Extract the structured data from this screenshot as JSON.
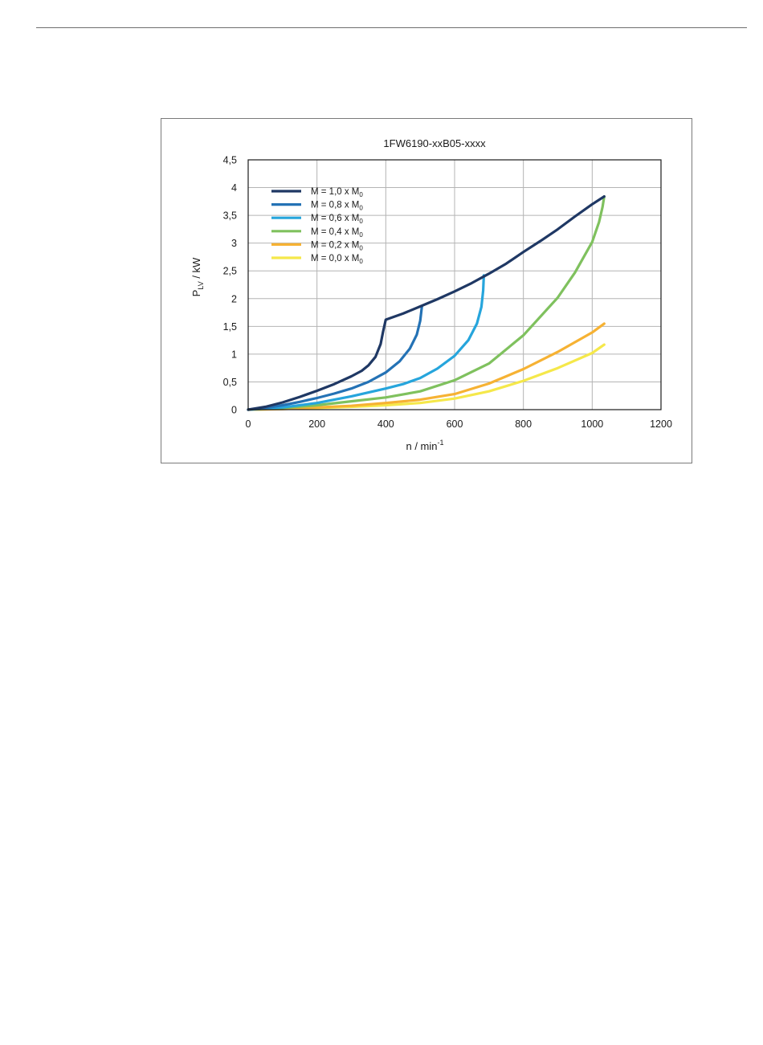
{
  "colors": {
    "frame": "#7a7a7a",
    "grid": "#b4b4b4",
    "plot_border": "#1a1a1a"
  },
  "chart_data": {
    "type": "line",
    "title": "1FW6190-xxB05-xxxx",
    "xlabel": {
      "main": "n / min",
      "superscript": "-1"
    },
    "ylabel": {
      "main": "P",
      "subscript": "LV",
      "rest": " / kW"
    },
    "xlim": [
      0,
      1200
    ],
    "ylim": [
      0,
      4.5
    ],
    "x_ticks": [
      0,
      200,
      400,
      600,
      800,
      1000,
      1200
    ],
    "x_tick_labels": [
      "0",
      "200",
      "400",
      "600",
      "800",
      "1000",
      "1200"
    ],
    "y_ticks": [
      0,
      0.5,
      1,
      1.5,
      2,
      2.5,
      3,
      3.5,
      4,
      4.5
    ],
    "y_tick_labels": [
      "0",
      "0,5",
      "1",
      "1,5",
      "2",
      "2,5",
      "3",
      "3,5",
      "4",
      "4,5"
    ],
    "grid": true,
    "legend_position": "top-left",
    "series": [
      {
        "name": "M = 1,0 x M",
        "name_sub": "0",
        "color": "#1f3864",
        "points": [
          [
            0,
            0
          ],
          [
            50,
            0.05
          ],
          [
            100,
            0.13
          ],
          [
            150,
            0.23
          ],
          [
            200,
            0.34
          ],
          [
            250,
            0.46
          ],
          [
            300,
            0.6
          ],
          [
            330,
            0.7
          ],
          [
            350,
            0.8
          ],
          [
            370,
            0.95
          ],
          [
            385,
            1.18
          ],
          [
            392,
            1.4
          ],
          [
            400,
            1.62
          ],
          [
            450,
            1.73
          ],
          [
            500,
            1.86
          ],
          [
            550,
            1.99
          ],
          [
            600,
            2.13
          ],
          [
            650,
            2.28
          ],
          [
            700,
            2.45
          ],
          [
            750,
            2.63
          ],
          [
            800,
            2.84
          ],
          [
            850,
            3.04
          ],
          [
            900,
            3.25
          ],
          [
            950,
            3.48
          ],
          [
            1000,
            3.7
          ],
          [
            1035,
            3.84
          ]
        ]
      },
      {
        "name": "M = 0,8 x M",
        "name_sub": "0",
        "color": "#2472b5",
        "points": [
          [
            0,
            0
          ],
          [
            50,
            0.03
          ],
          [
            100,
            0.08
          ],
          [
            150,
            0.14
          ],
          [
            200,
            0.21
          ],
          [
            250,
            0.29
          ],
          [
            300,
            0.38
          ],
          [
            350,
            0.5
          ],
          [
            400,
            0.67
          ],
          [
            440,
            0.87
          ],
          [
            470,
            1.1
          ],
          [
            490,
            1.35
          ],
          [
            500,
            1.6
          ],
          [
            505,
            1.86
          ]
        ]
      },
      {
        "name": "M = 0,6 x M",
        "name_sub": "0",
        "color": "#26a5dc",
        "points": [
          [
            0,
            0
          ],
          [
            100,
            0.04
          ],
          [
            200,
            0.12
          ],
          [
            300,
            0.24
          ],
          [
            400,
            0.38
          ],
          [
            450,
            0.46
          ],
          [
            500,
            0.57
          ],
          [
            550,
            0.74
          ],
          [
            600,
            0.97
          ],
          [
            640,
            1.25
          ],
          [
            665,
            1.55
          ],
          [
            678,
            1.85
          ],
          [
            683,
            2.15
          ],
          [
            685,
            2.42
          ]
        ]
      },
      {
        "name": "M = 0,4 x M",
        "name_sub": "0",
        "color": "#7fc15e",
        "points": [
          [
            0,
            0
          ],
          [
            100,
            0.03
          ],
          [
            200,
            0.08
          ],
          [
            300,
            0.15
          ],
          [
            400,
            0.22
          ],
          [
            500,
            0.33
          ],
          [
            600,
            0.53
          ],
          [
            700,
            0.83
          ],
          [
            800,
            1.34
          ],
          [
            900,
            2.02
          ],
          [
            950,
            2.47
          ],
          [
            1000,
            3.02
          ],
          [
            1020,
            3.38
          ],
          [
            1030,
            3.65
          ],
          [
            1035,
            3.84
          ]
        ]
      },
      {
        "name": "M = 0,2 x M",
        "name_sub": "0",
        "color": "#f6b233",
        "points": [
          [
            0,
            0
          ],
          [
            100,
            0.01
          ],
          [
            200,
            0.04
          ],
          [
            300,
            0.07
          ],
          [
            400,
            0.12
          ],
          [
            500,
            0.18
          ],
          [
            600,
            0.28
          ],
          [
            700,
            0.47
          ],
          [
            800,
            0.73
          ],
          [
            900,
            1.04
          ],
          [
            1000,
            1.39
          ],
          [
            1035,
            1.55
          ]
        ]
      },
      {
        "name": "M = 0,0 x M",
        "name_sub": "0",
        "color": "#f5e84a",
        "points": [
          [
            0,
            0
          ],
          [
            200,
            0.03
          ],
          [
            300,
            0.05
          ],
          [
            400,
            0.08
          ],
          [
            500,
            0.12
          ],
          [
            600,
            0.2
          ],
          [
            700,
            0.33
          ],
          [
            800,
            0.52
          ],
          [
            900,
            0.75
          ],
          [
            1000,
            1.02
          ],
          [
            1035,
            1.17
          ]
        ]
      }
    ]
  }
}
